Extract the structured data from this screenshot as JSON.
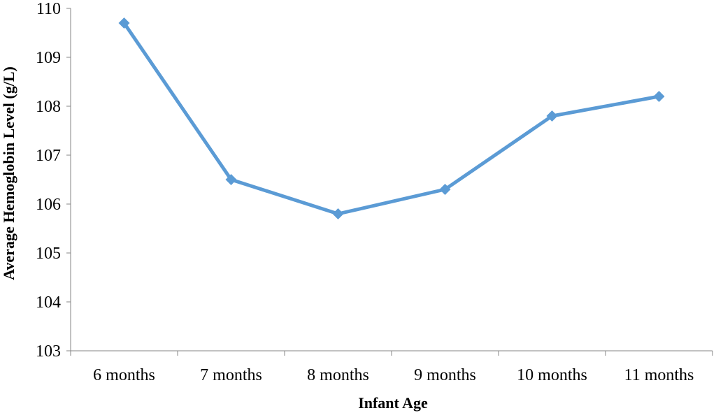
{
  "chart_data": {
    "type": "line",
    "title": "",
    "xlabel": "Infant Age",
    "ylabel": "Average Hemoglobin Level (g/L)",
    "categories": [
      "6 months",
      "7 months",
      "8 months",
      "9 months",
      "10 months",
      "11 months"
    ],
    "series": [
      {
        "values": [
          109.7,
          106.5,
          105.8,
          106.3,
          107.8,
          108.2
        ],
        "color": "#5b9bd5"
      }
    ],
    "ylim": [
      103,
      110
    ],
    "yticks": [
      "103",
      "104",
      "105",
      "106",
      "107",
      "108",
      "109",
      "110"
    ],
    "grid": false,
    "legend": "none",
    "marker": "diamond"
  }
}
